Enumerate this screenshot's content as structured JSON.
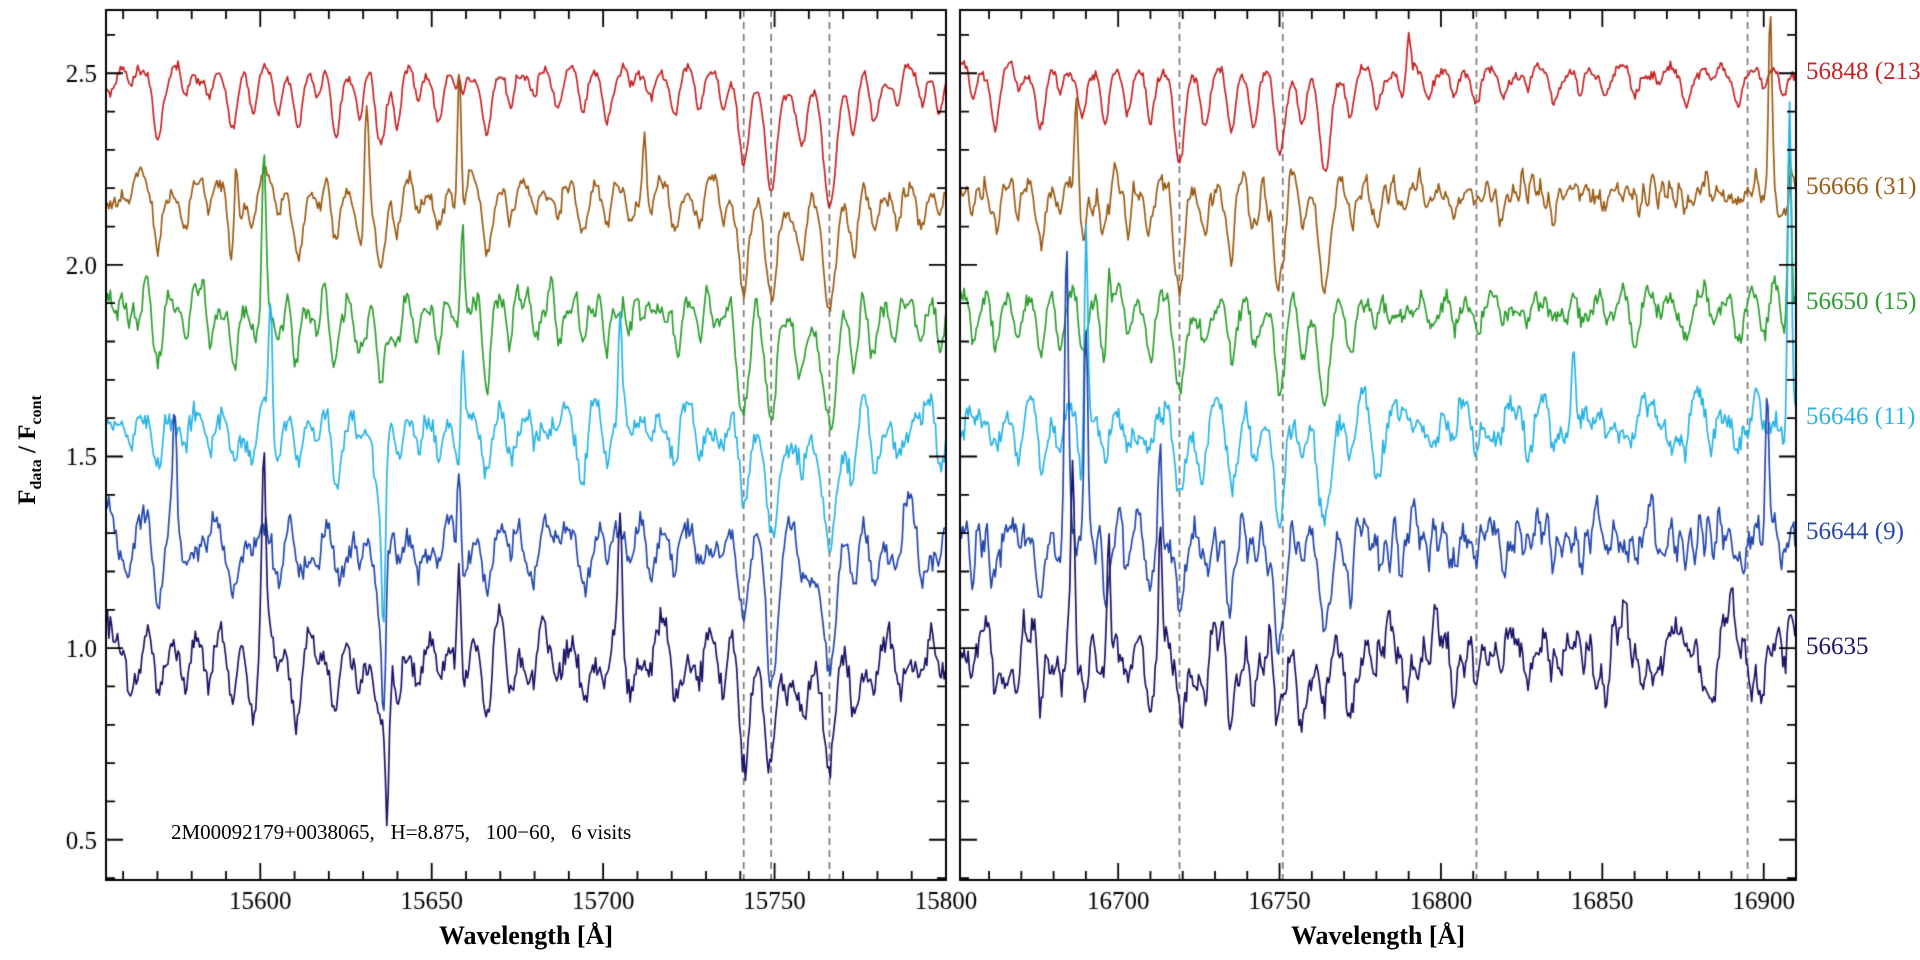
{
  "figure": {
    "background": "#ffffff",
    "annotation": "2M00092179+0038065,   H=8.875,   100−60,   6 visits",
    "target_id": "2M00092179+0038065",
    "h_magnitude": "8.875",
    "field": "100−60",
    "n_visits": "6 visits"
  },
  "chart_data": {
    "type": "line",
    "kind": "stacked-visit-spectra",
    "title": "",
    "xlabel": "Wavelength [Å]",
    "ylabel": "F_data / F_cont",
    "ylabel_parts": {
      "f1": "F",
      "sub1": "data",
      "sep": " / ",
      "f2": "F",
      "sub2": "cont"
    },
    "ylim": [
      0.395,
      2.665
    ],
    "y_ticks": [
      0.5,
      1.0,
      1.5,
      2.0,
      2.5
    ],
    "y_tick_labels": [
      "0.5",
      "1.0",
      "1.5",
      "2.0",
      "2.5"
    ],
    "y_minor_step": 0.1,
    "grid": false,
    "legend_position": "right-outside",
    "axis_color": "#000000",
    "dashed_line_color": "#7a7a7a",
    "panels": [
      {
        "xlim": [
          15555,
          15800
        ],
        "x_ticks": [
          15600,
          15650,
          15700,
          15750,
          15800
        ],
        "x_minor_step": 10,
        "dashed_lines": [
          15741,
          15749,
          15766
        ],
        "absorption_lines": [
          [
            15562,
            0.07,
            1.0
          ],
          [
            15570,
            0.13,
            1.2
          ],
          [
            15578,
            0.08,
            1.0
          ],
          [
            15585,
            0.07,
            1.0
          ],
          [
            15592,
            0.15,
            1.3
          ],
          [
            15598,
            0.09,
            1.0
          ],
          [
            15605,
            0.1,
            1.1
          ],
          [
            15611,
            0.13,
            1.2
          ],
          [
            15617,
            0.08,
            1.0
          ],
          [
            15622,
            0.15,
            1.2
          ],
          [
            15629,
            0.11,
            1.1
          ],
          [
            15635,
            0.21,
            1.4
          ],
          [
            15640,
            0.13,
            1.0
          ],
          [
            15646,
            0.08,
            1.0
          ],
          [
            15652,
            0.1,
            1.1
          ],
          [
            15658,
            0.13,
            1.2
          ],
          [
            15666,
            0.15,
            1.3
          ],
          [
            15673,
            0.1,
            1.0
          ],
          [
            15680,
            0.07,
            1.0
          ],
          [
            15687,
            0.06,
            1.0
          ],
          [
            15694,
            0.12,
            1.2
          ],
          [
            15701,
            0.1,
            1.1
          ],
          [
            15708,
            0.07,
            1.0
          ],
          [
            15714,
            0.06,
            1.0
          ],
          [
            15721,
            0.11,
            1.2
          ],
          [
            15728,
            0.09,
            1.0
          ],
          [
            15735,
            0.09,
            1.0
          ],
          [
            15741,
            0.24,
            1.5
          ],
          [
            15749,
            0.3,
            1.6
          ],
          [
            15758,
            0.13,
            1.3
          ],
          [
            15766,
            0.3,
            1.8
          ],
          [
            15773,
            0.14,
            1.2
          ],
          [
            15779,
            0.12,
            1.2
          ],
          [
            15786,
            0.1,
            1.1
          ],
          [
            15793,
            0.08,
            1.0
          ],
          [
            15798,
            0.09,
            1.0
          ],
          [
            15757,
            0.05,
            9.0
          ]
        ]
      },
      {
        "xlim": [
          16651,
          16910
        ],
        "x_ticks": [
          16700,
          16750,
          16800,
          16850,
          16900
        ],
        "x_minor_step": 10,
        "dashed_lines": [
          16719,
          16751,
          16811,
          16895
        ],
        "absorption_lines": [
          [
            16655,
            0.08,
            1.0
          ],
          [
            16662,
            0.1,
            1.1
          ],
          [
            16669,
            0.07,
            1.0
          ],
          [
            16676,
            0.12,
            1.2
          ],
          [
            16682,
            0.09,
            1.0
          ],
          [
            16689,
            0.11,
            1.1
          ],
          [
            16696,
            0.13,
            1.2
          ],
          [
            16703,
            0.09,
            1.0
          ],
          [
            16710,
            0.11,
            1.1
          ],
          [
            16719,
            0.24,
            1.6
          ],
          [
            16727,
            0.11,
            1.2
          ],
          [
            16735,
            0.17,
            1.3
          ],
          [
            16742,
            0.1,
            1.1
          ],
          [
            16750,
            0.26,
            1.6
          ],
          [
            16757,
            0.1,
            1.2
          ],
          [
            16764,
            0.25,
            1.7
          ],
          [
            16772,
            0.12,
            1.2
          ],
          [
            16780,
            0.08,
            1.0
          ],
          [
            16788,
            0.07,
            1.0
          ],
          [
            16796,
            0.06,
            1.0
          ],
          [
            16804,
            0.07,
            1.0
          ],
          [
            16811,
            0.08,
            1.2
          ],
          [
            16819,
            0.05,
            1.0
          ],
          [
            16827,
            0.06,
            1.0
          ],
          [
            16835,
            0.05,
            1.0
          ],
          [
            16843,
            0.07,
            1.0
          ],
          [
            16851,
            0.05,
            1.0
          ],
          [
            16860,
            0.06,
            1.0
          ],
          [
            16868,
            0.05,
            1.0
          ],
          [
            16876,
            0.06,
            1.0
          ],
          [
            16884,
            0.05,
            1.0
          ],
          [
            16892,
            0.06,
            1.0
          ],
          [
            16900,
            0.05,
            1.0
          ],
          [
            16906,
            0.06,
            1.0
          ]
        ]
      }
    ],
    "series": [
      {
        "label": "56848 (213)",
        "mjd": "56848",
        "snr": "213",
        "color": "#c42424",
        "offset": 2.5,
        "noise": 0.01,
        "seed": 1,
        "spikes": [
          [
            [
              15658,
              0.1
            ]
          ],
          [
            [
              16790,
              0.1
            ]
          ]
        ]
      },
      {
        "label": "56666 (31)",
        "mjd": "56666",
        "snr": "31",
        "color": "#9a5c16",
        "offset": 2.2,
        "noise": 0.016,
        "seed": 2,
        "spikes": [
          [
            [
              15593,
              0.22
            ],
            [
              15631,
              0.26
            ],
            [
              15658,
              0.42
            ],
            [
              15712,
              0.16
            ]
          ],
          [
            [
              16687,
              0.26
            ],
            [
              16902,
              0.5
            ]
          ]
        ]
      },
      {
        "label": "56650 (15)",
        "mjd": "56650",
        "snr": "15",
        "color": "#2f9e30",
        "offset": 1.9,
        "noise": 0.02,
        "seed": 3,
        "spikes": [
          [
            [
              15601,
              0.36
            ],
            [
              15659,
              0.3
            ]
          ],
          [
            [
              16697,
              0.2
            ],
            [
              16908,
              0.5
            ]
          ]
        ]
      },
      {
        "label": "56646 (11)",
        "mjd": "56646",
        "snr": "11",
        "color": "#2ab4e4",
        "offset": 1.6,
        "noise": 0.024,
        "seed": 4,
        "spikes": [
          [
            [
              15603,
              0.3
            ],
            [
              15636,
              -0.36
            ],
            [
              15659,
              0.28
            ],
            [
              15705,
              0.26
            ]
          ],
          [
            [
              16690,
              0.6
            ],
            [
              16841,
              0.2
            ],
            [
              16908,
              0.85
            ]
          ]
        ]
      },
      {
        "label": "56644 (9)",
        "mjd": "56644",
        "snr": "9",
        "color": "#2548ab",
        "offset": 1.3,
        "noise": 0.026,
        "seed": 5,
        "spikes": [
          [
            [
              15575,
              0.26
            ],
            [
              15636,
              -0.3
            ],
            [
              15658,
              0.3
            ]
          ],
          [
            [
              16684,
              0.78
            ],
            [
              16690,
              0.66
            ],
            [
              16713,
              0.28
            ],
            [
              16901,
              0.36
            ]
          ]
        ]
      },
      {
        "label": "56635",
        "mjd": "56635",
        "snr": "",
        "color": "#1b1566",
        "offset": 1.0,
        "noise": 0.028,
        "seed": 6,
        "spikes": [
          [
            [
              15601,
              0.46
            ],
            [
              15637,
              -0.42
            ],
            [
              15658,
              0.36
            ],
            [
              15705,
              0.3
            ]
          ],
          [
            [
              16686,
              0.5
            ],
            [
              16697,
              0.42
            ],
            [
              16713,
              0.32
            ]
          ]
        ]
      }
    ]
  }
}
